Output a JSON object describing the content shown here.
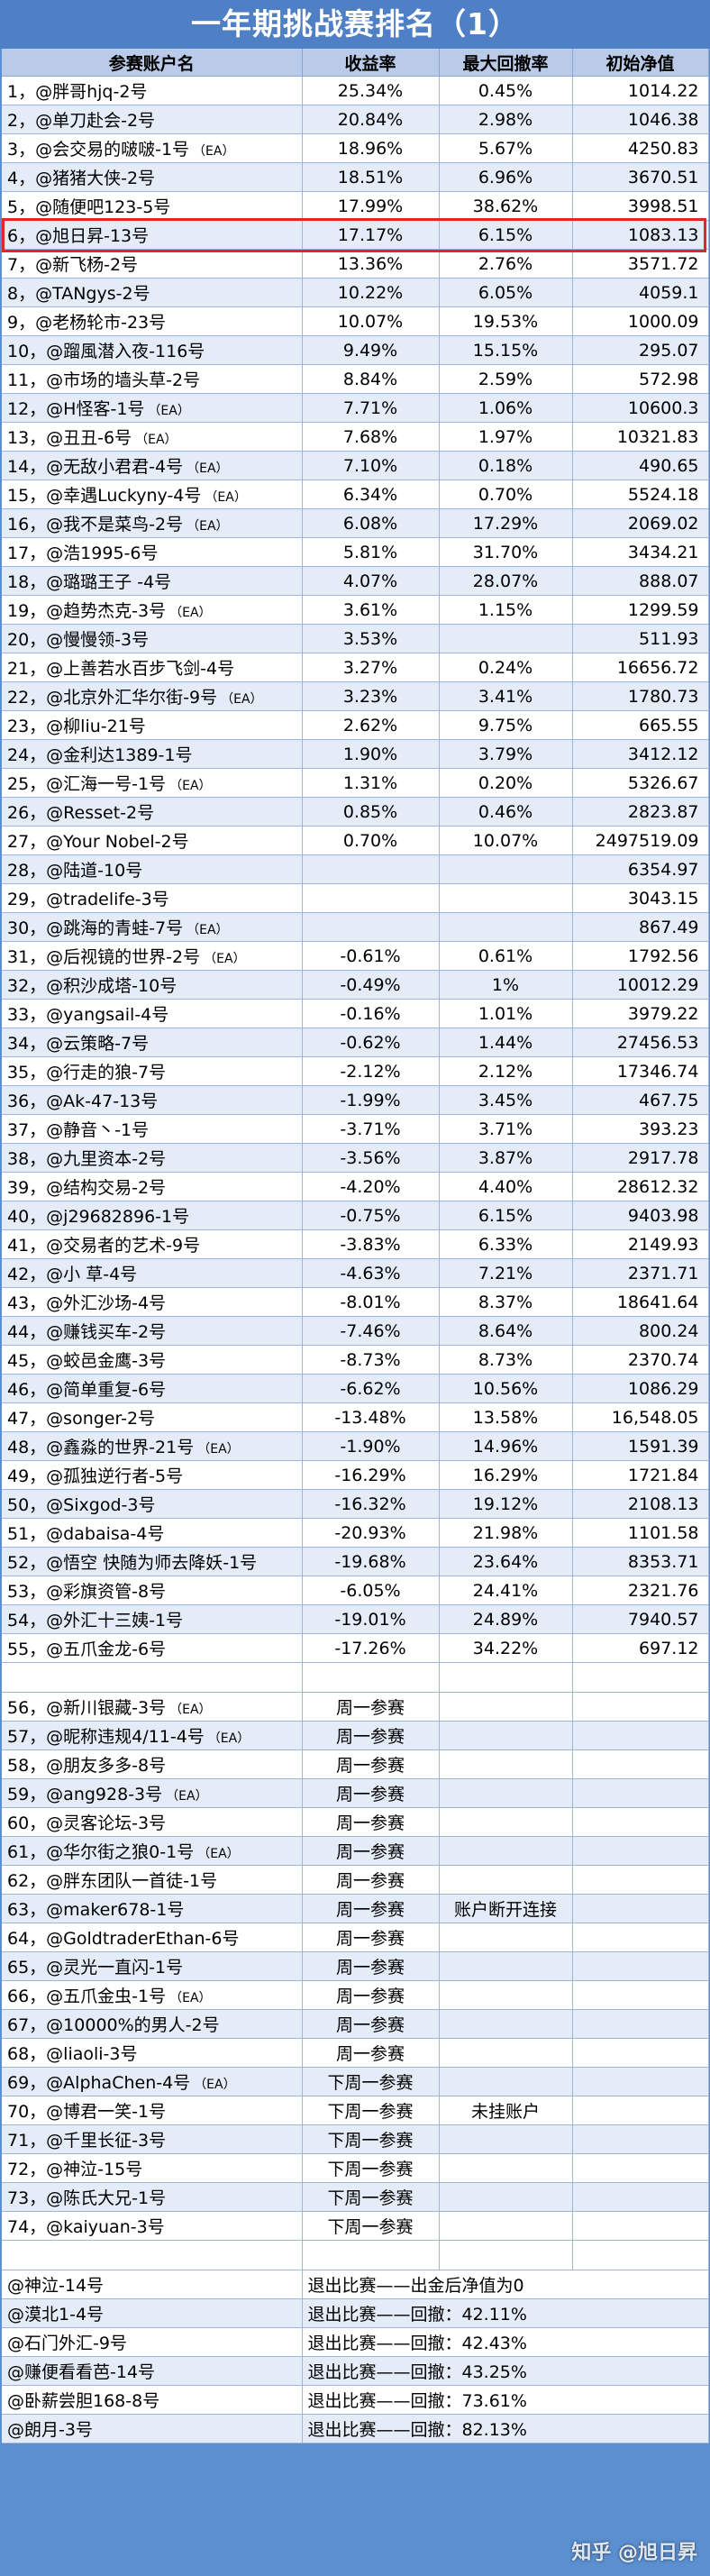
{
  "title": "一年期挑战赛排名（1）",
  "headers": [
    "参赛账户名",
    "收益率",
    "最大回撤率",
    "初始净值"
  ],
  "rows": [
    {
      "name": "1，@胖哥hjq-2号",
      "ea": "",
      "ret": "25.34%",
      "dd": "0.45%",
      "nav": "1014.22"
    },
    {
      "name": "2，@单刀赴会-2号",
      "ea": "",
      "ret": "20.84%",
      "dd": "2.98%",
      "nav": "1046.38"
    },
    {
      "name": "3，@会交易的啵啵-1号",
      "ea": "（EA）",
      "ret": "18.96%",
      "dd": "5.67%",
      "nav": "4250.83"
    },
    {
      "name": "4，@猪猪大侠-2号",
      "ea": "",
      "ret": "18.51%",
      "dd": "6.96%",
      "nav": "3670.51"
    },
    {
      "name": "5，@随便吧123-5号",
      "ea": "",
      "ret": "17.99%",
      "dd": "38.62%",
      "nav": "3998.51"
    },
    {
      "name": "6，@旭日昇-13号",
      "ea": "",
      "ret": "17.17%",
      "dd": "6.15%",
      "nav": "1083.13"
    },
    {
      "name": "7，@新飞杨-2号",
      "ea": "",
      "ret": "13.36%",
      "dd": "2.76%",
      "nav": "3571.72"
    },
    {
      "name": "8，@TANgys-2号",
      "ea": "",
      "ret": "10.22%",
      "dd": "6.05%",
      "nav": "4059.1"
    },
    {
      "name": "9，@老杨轮市-23号",
      "ea": "",
      "ret": "10.07%",
      "dd": "19.53%",
      "nav": "1000.09"
    },
    {
      "name": "10，@蹓風潜入夜-116号",
      "ea": "",
      "ret": "9.49%",
      "dd": "15.15%",
      "nav": "295.07"
    },
    {
      "name": "11，@市场的墙头草-2号",
      "ea": "",
      "ret": "8.84%",
      "dd": "2.59%",
      "nav": "572.98"
    },
    {
      "name": "12，@H怪客-1号",
      "ea": "（EA）",
      "ret": "7.71%",
      "dd": "1.06%",
      "nav": "10600.3"
    },
    {
      "name": "13，@丑丑-6号",
      "ea": "（EA）",
      "ret": "7.68%",
      "dd": "1.97%",
      "nav": "10321.83"
    },
    {
      "name": "14，@无敌小君君-4号",
      "ea": "（EA）",
      "ret": "7.10%",
      "dd": "0.18%",
      "nav": "490.65"
    },
    {
      "name": "15，@幸遇Luckyny-4号",
      "ea": "（EA）",
      "ret": "6.34%",
      "dd": "0.70%",
      "nav": "5524.18"
    },
    {
      "name": "16，@我不是菜鸟-2号",
      "ea": "（EA）",
      "ret": "6.08%",
      "dd": "17.29%",
      "nav": "2069.02"
    },
    {
      "name": "17，@浩1995-6号",
      "ea": "",
      "ret": "5.81%",
      "dd": "31.70%",
      "nav": "3434.21"
    },
    {
      "name": "18，@璐璐王子 -4号",
      "ea": "",
      "ret": "4.07%",
      "dd": "28.07%",
      "nav": "888.07"
    },
    {
      "name": "19，@趋势杰克-3号",
      "ea": "（EA）",
      "ret": "3.61%",
      "dd": "1.15%",
      "nav": "1299.59"
    },
    {
      "name": "20，@慢慢领-3号",
      "ea": "",
      "ret": "3.53%",
      "dd": "",
      "nav": "511.93"
    },
    {
      "name": "21，@上善若水百步飞剑-4号",
      "ea": "",
      "ret": "3.27%",
      "dd": "0.24%",
      "nav": "16656.72"
    },
    {
      "name": "22，@北京外汇华尔街-9号",
      "ea": "（EA）",
      "ret": "3.23%",
      "dd": "3.41%",
      "nav": "1780.73"
    },
    {
      "name": "23，@柳liu-21号",
      "ea": "",
      "ret": "2.62%",
      "dd": "9.75%",
      "nav": "665.55"
    },
    {
      "name": "24，@金利达1389-1号",
      "ea": "",
      "ret": "1.90%",
      "dd": "3.79%",
      "nav": "3412.12"
    },
    {
      "name": "25，@汇海一号-1号",
      "ea": "（EA）",
      "ret": "1.31%",
      "dd": "0.20%",
      "nav": "5326.67"
    },
    {
      "name": "26，@Resset-2号",
      "ea": "",
      "ret": "0.85%",
      "dd": "0.46%",
      "nav": "2823.87"
    },
    {
      "name": "27，@Your Nobel-2号",
      "ea": "",
      "ret": "0.70%",
      "dd": "10.07%",
      "nav": "2497519.09"
    },
    {
      "name": "28，@陆道-10号",
      "ea": "",
      "ret": "",
      "dd": "",
      "nav": "6354.97"
    },
    {
      "name": "29，@tradelife-3号",
      "ea": "",
      "ret": "",
      "dd": "",
      "nav": "3043.15"
    },
    {
      "name": "30，@跳海的青蛙-7号",
      "ea": "（EA）",
      "ret": "",
      "dd": "",
      "nav": "867.49"
    },
    {
      "name": "31，@后视镜的世界-2号",
      "ea": "（EA）",
      "ret": "-0.61%",
      "dd": "0.61%",
      "nav": "1792.56"
    },
    {
      "name": "32，@积沙成塔-10号",
      "ea": "",
      "ret": "-0.49%",
      "dd": "1%",
      "nav": "10012.29"
    },
    {
      "name": "33，@yangsail-4号",
      "ea": "",
      "ret": "-0.16%",
      "dd": "1.01%",
      "nav": "3979.22"
    },
    {
      "name": "34，@云策略-7号",
      "ea": "",
      "ret": "-0.62%",
      "dd": "1.44%",
      "nav": "27456.53"
    },
    {
      "name": "35，@行走的狼-7号",
      "ea": "",
      "ret": "-2.12%",
      "dd": "2.12%",
      "nav": "17346.74"
    },
    {
      "name": "36，@Ak-47-13号",
      "ea": "",
      "ret": "-1.99%",
      "dd": "3.45%",
      "nav": "467.75"
    },
    {
      "name": "37，@静音丶-1号",
      "ea": "",
      "ret": "-3.71%",
      "dd": "3.71%",
      "nav": "393.23"
    },
    {
      "name": "38，@九里资本-2号",
      "ea": "",
      "ret": "-3.56%",
      "dd": "3.87%",
      "nav": "2917.78"
    },
    {
      "name": "39，@结构交易-2号",
      "ea": "",
      "ret": "-4.20%",
      "dd": "4.40%",
      "nav": "28612.32"
    },
    {
      "name": "40，@j29682896-1号",
      "ea": "",
      "ret": "-0.75%",
      "dd": "6.15%",
      "nav": "9403.98"
    },
    {
      "name": "41，@交易者的艺术-9号",
      "ea": "",
      "ret": "-3.83%",
      "dd": "6.33%",
      "nav": "2149.93"
    },
    {
      "name": "42，@小 草-4号",
      "ea": "",
      "ret": "-4.63%",
      "dd": "7.21%",
      "nav": "2371.71"
    },
    {
      "name": "43，@外汇沙场-4号",
      "ea": "",
      "ret": "-8.01%",
      "dd": "8.37%",
      "nav": "18641.64"
    },
    {
      "name": "44，@赚钱买车-2号",
      "ea": "",
      "ret": "-7.46%",
      "dd": "8.64%",
      "nav": "800.24"
    },
    {
      "name": "45，@蛟邑金鹰-3号",
      "ea": "",
      "ret": "-8.73%",
      "dd": "8.73%",
      "nav": "2370.74"
    },
    {
      "name": "46，@简单重复-6号",
      "ea": "",
      "ret": "-6.62%",
      "dd": "10.56%",
      "nav": "1086.29"
    },
    {
      "name": "47，@songer-2号",
      "ea": "",
      "ret": "-13.48%",
      "dd": "13.58%",
      "nav": "16,548.05"
    },
    {
      "name": "48，@鑫淼的世界-21号",
      "ea": "（EA）",
      "ret": "-1.90%",
      "dd": "14.96%",
      "nav": "1591.39"
    },
    {
      "name": "49，@孤独逆行者-5号",
      "ea": "",
      "ret": "-16.29%",
      "dd": "16.29%",
      "nav": "1721.84"
    },
    {
      "name": "50，@Sixgod-3号",
      "ea": "",
      "ret": "-16.32%",
      "dd": "19.12%",
      "nav": "2108.13"
    },
    {
      "name": "51，@dabaisa-4号",
      "ea": "",
      "ret": "-20.93%",
      "dd": "21.98%",
      "nav": "1101.58"
    },
    {
      "name": "52，@悟空 快随为师去降妖-1号",
      "ea": "",
      "ret": "-19.68%",
      "dd": "23.64%",
      "nav": "8353.71"
    },
    {
      "name": "53，@彩旗资管-8号",
      "ea": "",
      "ret": "-6.05%",
      "dd": "24.41%",
      "nav": "2321.76"
    },
    {
      "name": "54，@外汇十三姨-1号",
      "ea": "",
      "ret": "-19.01%",
      "dd": "24.89%",
      "nav": "7940.57"
    },
    {
      "name": "55，@五爪金龙-6号",
      "ea": "",
      "ret": "-17.26%",
      "dd": "34.22%",
      "nav": "697.12"
    }
  ],
  "upcoming": [
    {
      "name": "56，@新川银藏-3号",
      "ea": "（EA）",
      "status": "周一参赛",
      "note": ""
    },
    {
      "name": "57，@昵称违规4/11-4号",
      "ea": "（EA）",
      "status": "周一参赛",
      "note": ""
    },
    {
      "name": "58，@朋友多多-8号",
      "ea": "",
      "status": "周一参赛",
      "note": ""
    },
    {
      "name": "59，@ang928-3号",
      "ea": "（EA）",
      "status": "周一参赛",
      "note": ""
    },
    {
      "name": "60，@灵客论坛-3号",
      "ea": "",
      "status": "周一参赛",
      "note": ""
    },
    {
      "name": "61，@华尔街之狼0-1号",
      "ea": "（EA）",
      "status": "周一参赛",
      "note": ""
    },
    {
      "name": "62，@胖东团队一首徒-1号",
      "ea": "",
      "status": "周一参赛",
      "note": ""
    },
    {
      "name": "63，@maker678-1号",
      "ea": "",
      "status": "周一参赛",
      "note": "账户断开连接"
    },
    {
      "name": "64，@GoldtraderEthan-6号",
      "ea": "",
      "status": "周一参赛",
      "note": ""
    },
    {
      "name": "65，@灵光一直闪-1号",
      "ea": "",
      "status": "周一参赛",
      "note": ""
    },
    {
      "name": "66，@五爪金虫-1号",
      "ea": "（EA）",
      "status": "周一参赛",
      "note": ""
    },
    {
      "name": "67，@10000%的男人-2号",
      "ea": "",
      "status": "周一参赛",
      "note": ""
    },
    {
      "name": "68，@liaoli-3号",
      "ea": "",
      "status": "周一参赛",
      "note": ""
    },
    {
      "name": "69，@AlphaChen-4号",
      "ea": "（EA）",
      "status": "下周一参赛",
      "note": ""
    },
    {
      "name": "70，@博君一笑-1号",
      "ea": "",
      "status": "下周一参赛",
      "note": "未挂账户"
    },
    {
      "name": "71，@千里长征-3号",
      "ea": "",
      "status": "下周一参赛",
      "note": ""
    },
    {
      "name": "72，@神泣-15号",
      "ea": "",
      "status": "下周一参赛",
      "note": ""
    },
    {
      "name": "73，@陈氏大兄-1号",
      "ea": "",
      "status": "下周一参赛",
      "note": ""
    },
    {
      "name": "74，@kaiyuan-3号",
      "ea": "",
      "status": "下周一参赛",
      "note": ""
    }
  ],
  "exited": [
    {
      "name": "@神泣-14号",
      "status": "退出比赛——出金后净值为0"
    },
    {
      "name": "@漠北1-4号",
      "status": "退出比赛——回撤：42.11%"
    },
    {
      "name": "@石门外汇-9号",
      "status": "退出比赛——回撤：42.43%"
    },
    {
      "name": "@赚便看看芭-14号",
      "status": "退出比赛——回撤：43.25%"
    },
    {
      "name": "@卧薪尝胆168-8号",
      "status": "退出比赛——回撤：73.61%"
    },
    {
      "name": "@朗月-3号",
      "status": "退出比赛——回撤：82.13%"
    }
  ],
  "watermark": "知乎 @旭日昇",
  "colors": {
    "background": "#5b8fd0",
    "header": "#b9cbe8",
    "highlight_border": "#e0252c"
  }
}
